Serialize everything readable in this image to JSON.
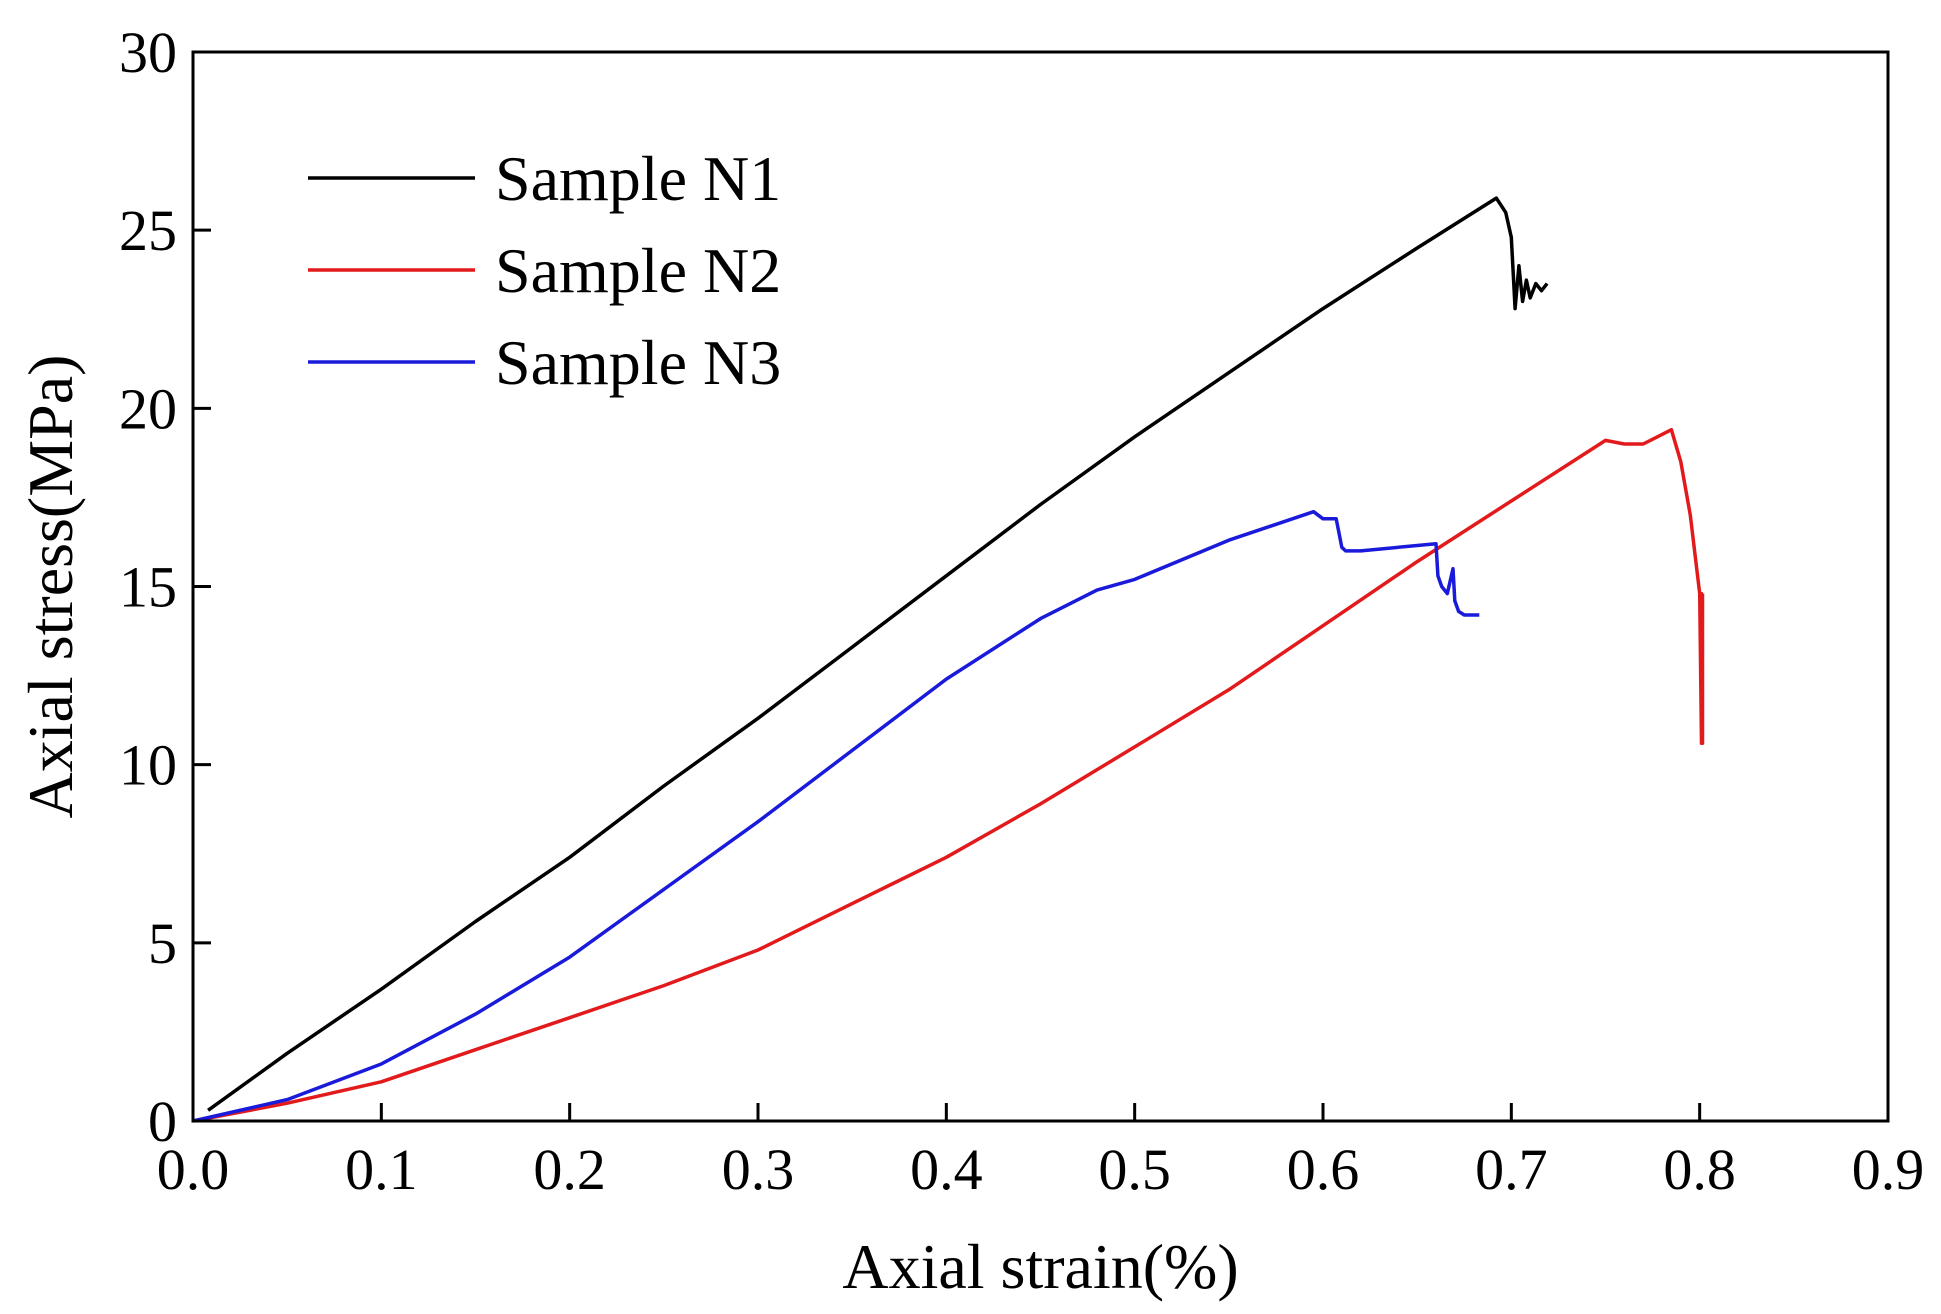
{
  "chart_data": {
    "type": "line",
    "title": "",
    "xlabel": "Axial strain(%)",
    "ylabel": "Axial stress(MPa)",
    "xlim": [
      0,
      0.9
    ],
    "ylim": [
      0,
      30
    ],
    "x_ticks": [
      0.0,
      0.1,
      0.2,
      0.3,
      0.4,
      0.5,
      0.6,
      0.7,
      0.8,
      0.9
    ],
    "x_tick_labels": [
      "0.0",
      "0.1",
      "0.2",
      "0.3",
      "0.4",
      "0.5",
      "0.6",
      "0.7",
      "0.8",
      "0.9"
    ],
    "y_ticks": [
      0,
      5,
      10,
      15,
      20,
      25,
      30
    ],
    "y_tick_labels": [
      "0",
      "5",
      "10",
      "15",
      "20",
      "25",
      "30"
    ],
    "grid": false,
    "legend_position": "top-left",
    "series": [
      {
        "name": "Sample N1",
        "color": "#000000",
        "x": [
          0.008,
          0.05,
          0.1,
          0.15,
          0.2,
          0.25,
          0.3,
          0.35,
          0.4,
          0.45,
          0.5,
          0.55,
          0.6,
          0.65,
          0.692,
          0.697,
          0.7,
          0.702,
          0.704,
          0.706,
          0.708,
          0.71,
          0.713,
          0.716,
          0.719
        ],
        "y": [
          0.3,
          1.9,
          3.7,
          5.6,
          7.4,
          9.4,
          11.3,
          13.3,
          15.3,
          17.3,
          19.2,
          21.0,
          22.8,
          24.5,
          25.9,
          25.5,
          24.8,
          22.8,
          24.0,
          23.0,
          23.6,
          23.1,
          23.5,
          23.3,
          23.5
        ]
      },
      {
        "name": "Sample N2",
        "color": "#e31a1c",
        "x": [
          0.0,
          0.05,
          0.1,
          0.15,
          0.2,
          0.25,
          0.3,
          0.35,
          0.4,
          0.45,
          0.5,
          0.55,
          0.6,
          0.65,
          0.7,
          0.75,
          0.76,
          0.77,
          0.785,
          0.79,
          0.795,
          0.8,
          0.801,
          0.801,
          0.8015,
          0.8015
        ],
        "y": [
          0.0,
          0.5,
          1.1,
          2.0,
          2.9,
          3.8,
          4.8,
          6.1,
          7.4,
          8.9,
          10.5,
          12.1,
          13.9,
          15.7,
          17.4,
          19.1,
          19.0,
          19.0,
          19.4,
          18.5,
          17.0,
          14.8,
          10.6,
          14.8,
          10.6,
          14.8
        ]
      },
      {
        "name": "Sample N3",
        "color": "#1a1adb",
        "x": [
          0.0,
          0.05,
          0.1,
          0.15,
          0.2,
          0.25,
          0.3,
          0.35,
          0.4,
          0.45,
          0.48,
          0.5,
          0.55,
          0.595,
          0.6,
          0.607,
          0.61,
          0.612,
          0.62,
          0.66,
          0.661,
          0.663,
          0.666,
          0.669,
          0.67,
          0.672,
          0.675,
          0.683
        ],
        "y": [
          0.0,
          0.6,
          1.6,
          3.0,
          4.6,
          6.5,
          8.4,
          10.4,
          12.4,
          14.1,
          14.9,
          15.2,
          16.3,
          17.1,
          16.9,
          16.9,
          16.1,
          16.0,
          16.0,
          16.2,
          15.3,
          15.0,
          14.8,
          15.5,
          14.6,
          14.3,
          14.2,
          14.2
        ]
      }
    ]
  }
}
